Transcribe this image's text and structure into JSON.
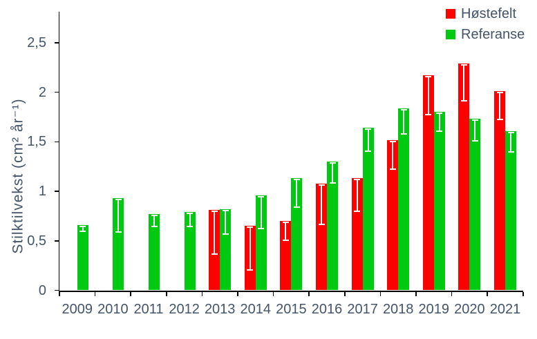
{
  "chart_data": {
    "type": "bar",
    "title": "",
    "categories": [
      "2009",
      "2010",
      "2011",
      "2012",
      "2013",
      "2014",
      "2015",
      "2016",
      "2017",
      "2018",
      "2019",
      "2020",
      "2021"
    ],
    "series": [
      {
        "name": "Høstefelt",
        "color": "#FF0000",
        "values": [
          null,
          null,
          null,
          null,
          0.81,
          0.65,
          0.7,
          1.08,
          1.13,
          1.52,
          2.17,
          2.29,
          2.01
        ],
        "errors": [
          null,
          null,
          null,
          null,
          0.45,
          0.45,
          0.2,
          0.42,
          0.34,
          0.3,
          0.4,
          0.38,
          0.29
        ]
      },
      {
        "name": "Referanse",
        "color": "#00C911",
        "values": [
          0.66,
          0.93,
          0.77,
          0.79,
          0.82,
          0.96,
          1.13,
          1.3,
          1.64,
          1.84,
          1.8,
          1.73,
          1.61
        ],
        "errors": [
          0.07,
          0.35,
          0.13,
          0.15,
          0.26,
          0.34,
          0.3,
          0.22,
          0.24,
          0.27,
          0.2,
          0.23,
          0.22
        ]
      }
    ],
    "xlabel": "",
    "ylabel": "Stilktilvekst (cm² år⁻¹)",
    "ylim": [
      0,
      2.82
    ],
    "yticks": [
      0,
      0.5,
      1,
      1.5,
      2,
      2.5
    ],
    "ytick_labels": [
      "0",
      "0,5",
      "1",
      "1,5",
      "2",
      "2,5"
    ],
    "decimal_separator": ",",
    "grid": false,
    "legend_position": "top-right",
    "error_bars": {
      "color": "#FFFFFF",
      "direction": "minus",
      "caps": true
    }
  },
  "style": {
    "axis_color": "#000000",
    "label_color": "#44546A",
    "background": "#FFFFFF"
  }
}
